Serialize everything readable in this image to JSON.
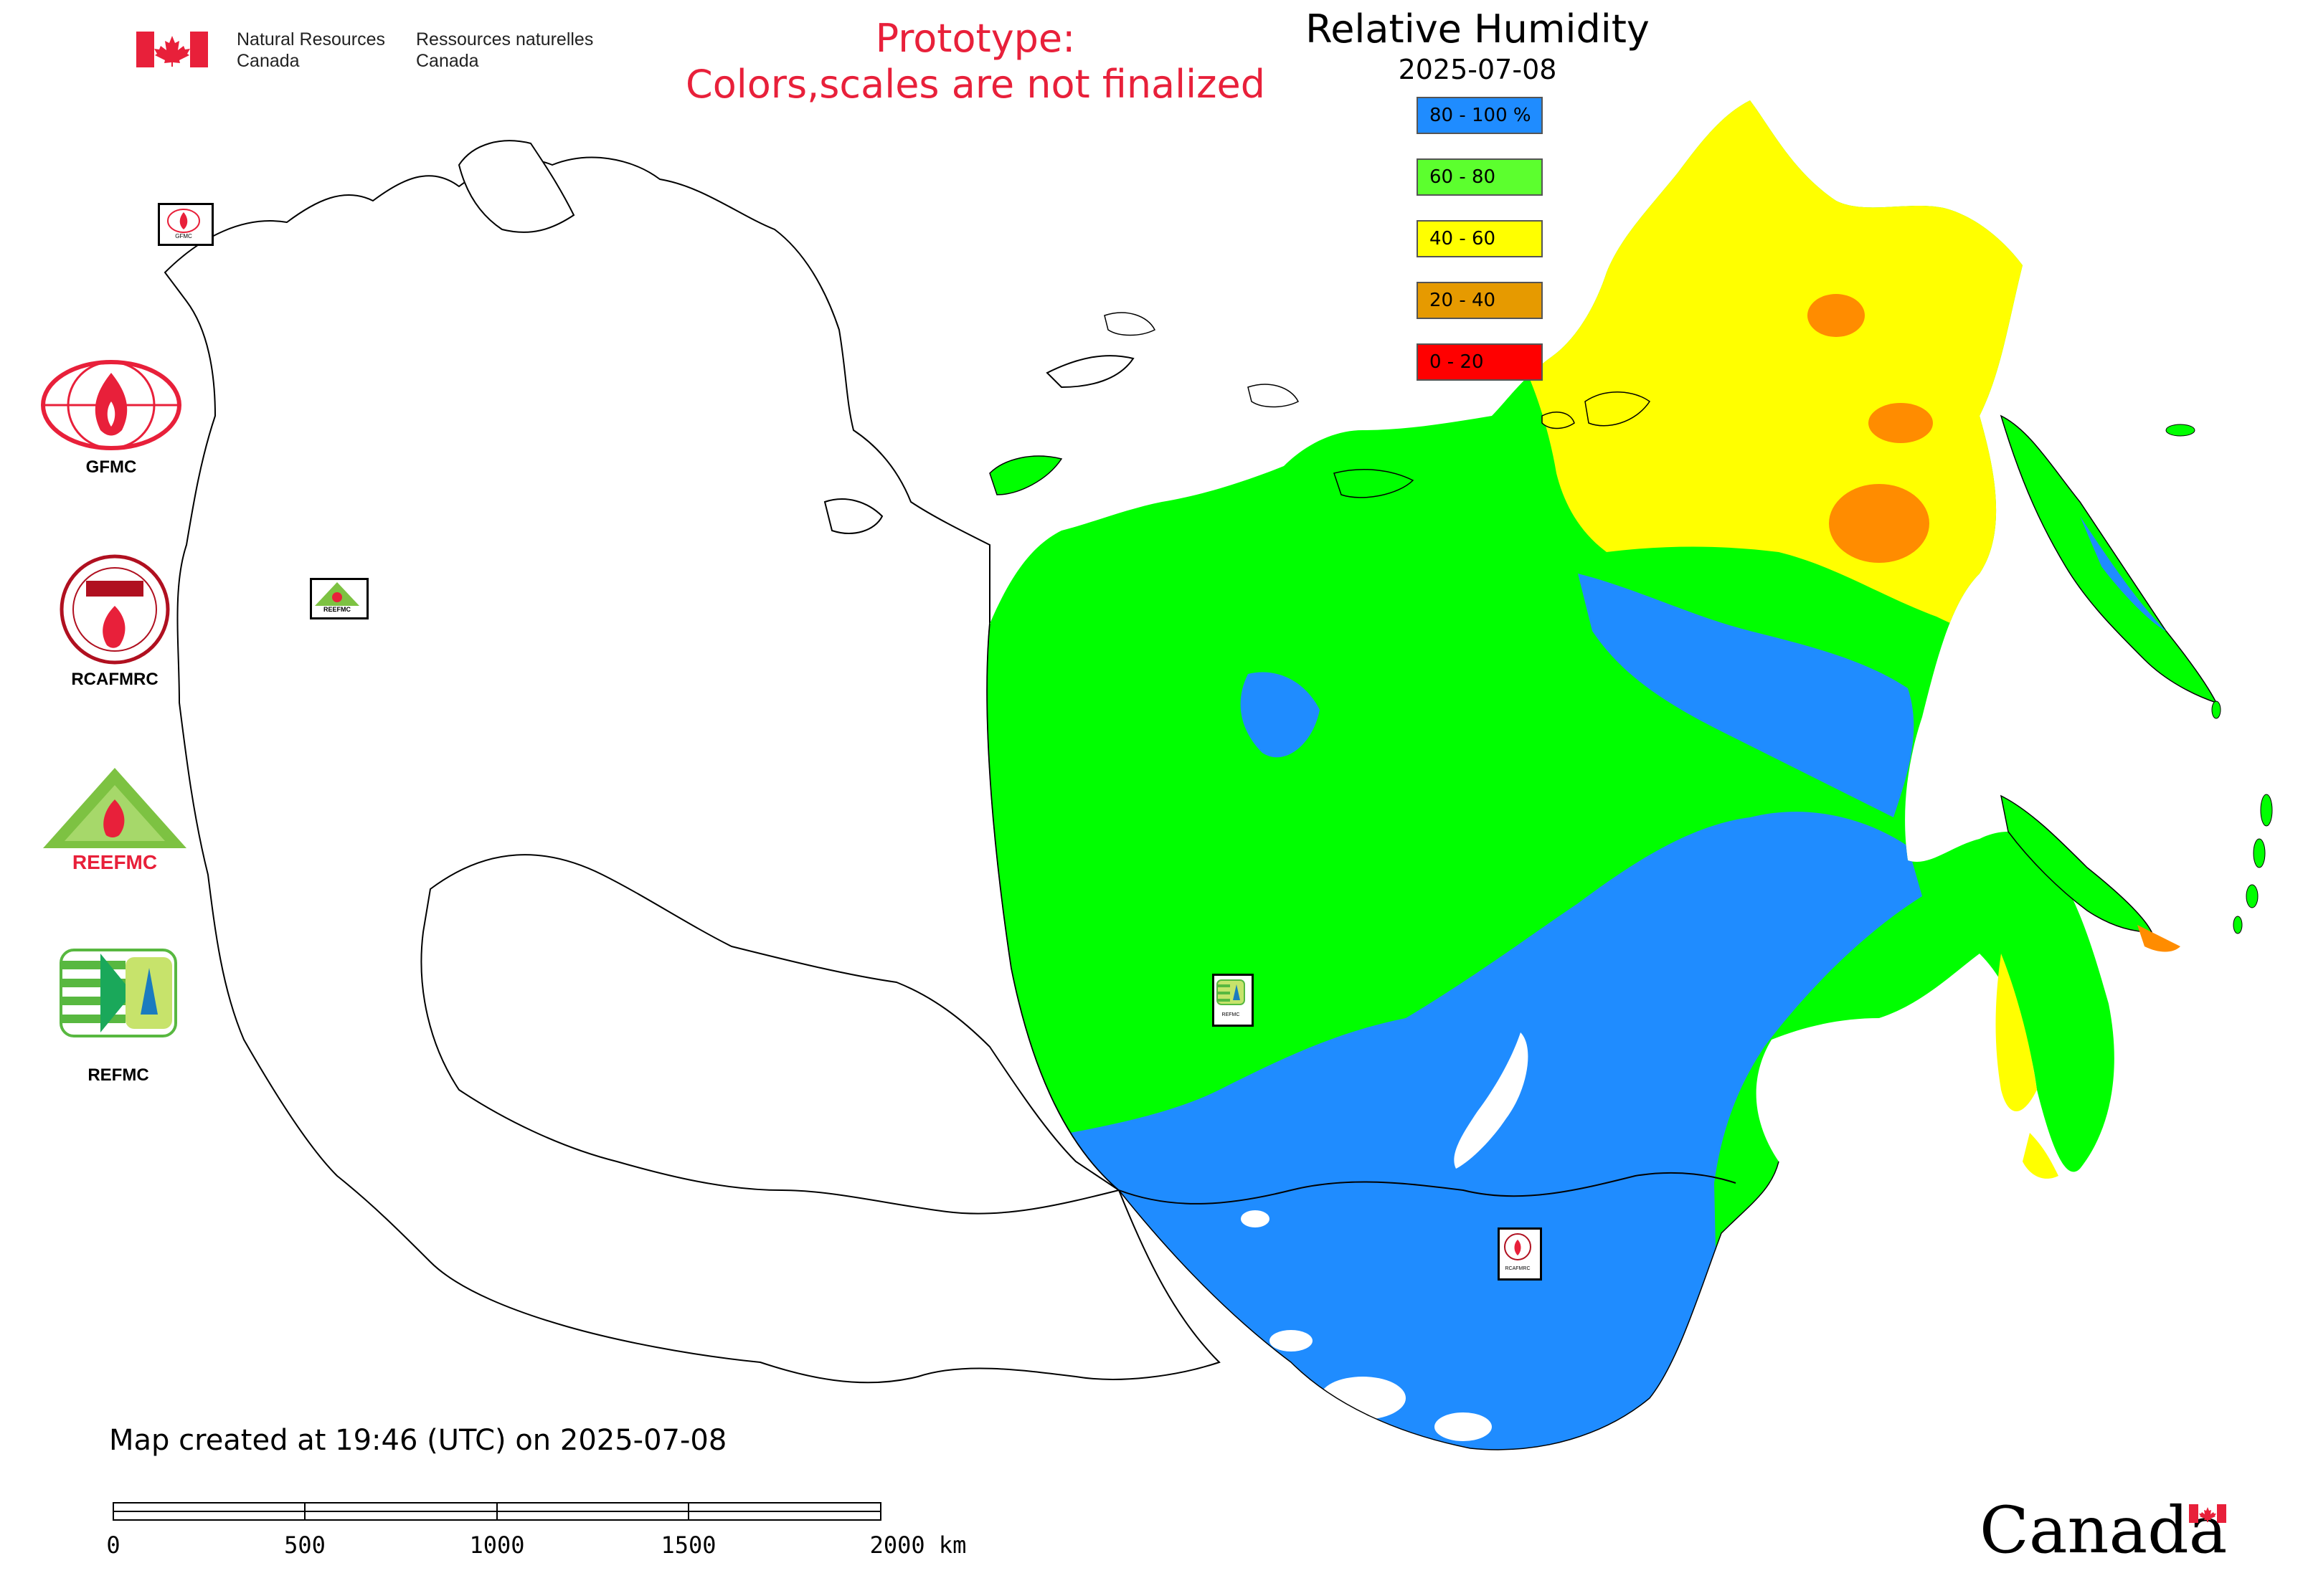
{
  "header": {
    "org_en_line1": "Natural Resources",
    "org_en_line2": "Canada",
    "org_fr_line1": "Ressources naturelles",
    "org_fr_line2": "Canada",
    "prototype_line1": "Prototype:",
    "prototype_line2": "Colors,scales are not finalized",
    "prototype_color": "#e8203a"
  },
  "map": {
    "title": "Relative Humidity",
    "date": "2025-07-08",
    "legend": [
      {
        "label": "80 - 100 %",
        "color": "#1f8cff"
      },
      {
        "label": "60 - 80",
        "color": "#5cff2e"
      },
      {
        "label": "40 - 60",
        "color": "#ffff00"
      },
      {
        "label": "20 - 40",
        "color": "#e69a00"
      },
      {
        "label": "0 - 20",
        "color": "#ff0000"
      }
    ],
    "fill_colors": {
      "humid_80_100": "#1f8cff",
      "green_60_80": "#00ff00",
      "yellow_40_60": "#ffff00",
      "orange_20_40": "#ff8c00",
      "outline": "#000000"
    }
  },
  "side_logos": [
    {
      "caption": "GFMC",
      "icon": "gfmc-logo-icon"
    },
    {
      "caption": "RCAFMRC",
      "icon": "rcafmrc-logo-icon"
    },
    {
      "caption": "REEFMC",
      "icon": "reefmc-logo-icon",
      "text": "REEFMC"
    },
    {
      "caption": "REFMC",
      "icon": "refmc-logo-icon"
    }
  ],
  "map_markers": [
    {
      "label": "GFMC",
      "icon": "gfmc-marker-icon"
    },
    {
      "label": "REEFMC",
      "icon": "reefmc-marker-icon"
    },
    {
      "label": "REFMC",
      "icon": "refmc-marker-icon"
    },
    {
      "label": "RCAFMRC",
      "icon": "rcafmrc-marker-icon"
    }
  ],
  "footer": {
    "created": "Map created at 19:46 (UTC) on 2025-07-08",
    "scale_labels": [
      "0",
      "500",
      "1000",
      "1500",
      "2000 km"
    ],
    "canada_wordmark": "Canada"
  }
}
